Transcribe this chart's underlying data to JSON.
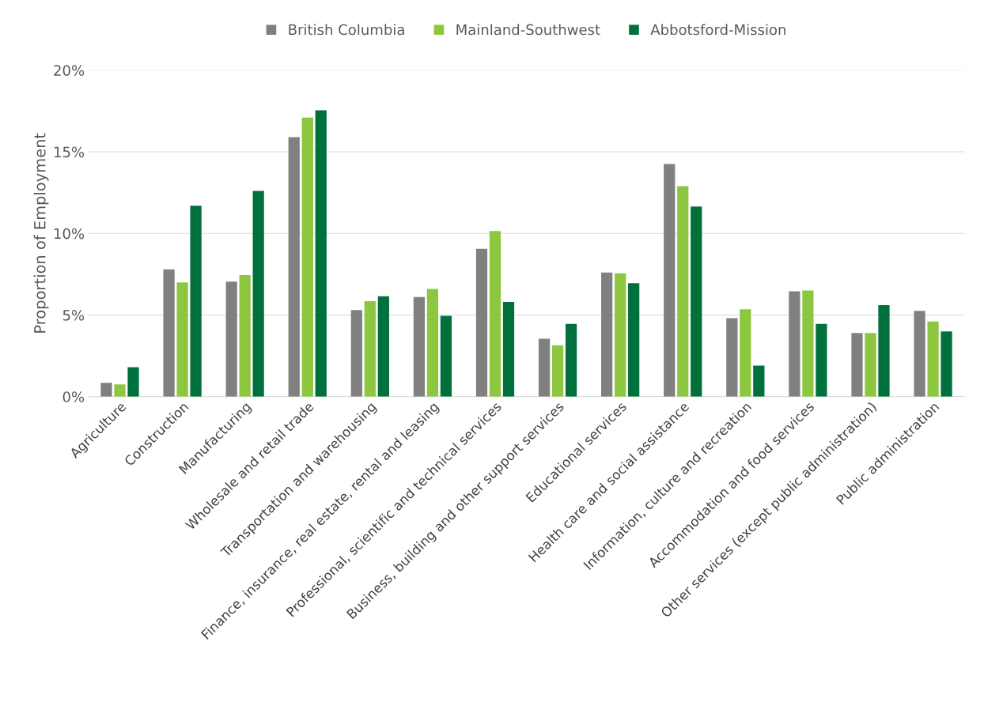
{
  "chart_data": {
    "type": "bar",
    "ylabel": "Proportion of Employment",
    "categories": [
      "Agriculture",
      "Construction",
      "Manufacturing",
      "Wholesale and retail trade",
      "Transportation and warehousing",
      "Finance, insurance, real estate, rental and leasing",
      "Professional, scientific and technical services",
      "Business, building and other support services",
      "Educational services",
      "Health care and social assistance",
      "Information, culture and recreation",
      "Accommodation and food services",
      "Other services (except public administration)",
      "Public administration"
    ],
    "series": [
      {
        "name": "British Columbia",
        "color": "#808080",
        "values": [
          0.85,
          7.8,
          7.05,
          15.9,
          5.3,
          6.1,
          9.05,
          3.55,
          7.6,
          14.25,
          4.8,
          6.45,
          3.9,
          5.25
        ]
      },
      {
        "name": "Mainland-Southwest",
        "color": "#8dc63f",
        "values": [
          0.75,
          7.0,
          7.45,
          17.1,
          5.85,
          6.6,
          10.15,
          3.15,
          7.55,
          12.9,
          5.35,
          6.5,
          3.9,
          4.6
        ]
      },
      {
        "name": "Abbotsford-Mission",
        "color": "#00703c",
        "values": [
          1.8,
          11.7,
          12.6,
          17.55,
          6.15,
          4.95,
          5.8,
          4.45,
          6.95,
          11.65,
          1.9,
          4.45,
          5.6,
          4.0
        ]
      }
    ],
    "ylim": [
      0,
      20
    ],
    "yticks": [
      {
        "value": 0,
        "label": "0%"
      },
      {
        "value": 5,
        "label": "5%"
      },
      {
        "value": 10,
        "label": "10%"
      },
      {
        "value": 15,
        "label": "15%"
      },
      {
        "value": 20,
        "label": "20%"
      }
    ],
    "grid": "y",
    "legend": "top"
  }
}
